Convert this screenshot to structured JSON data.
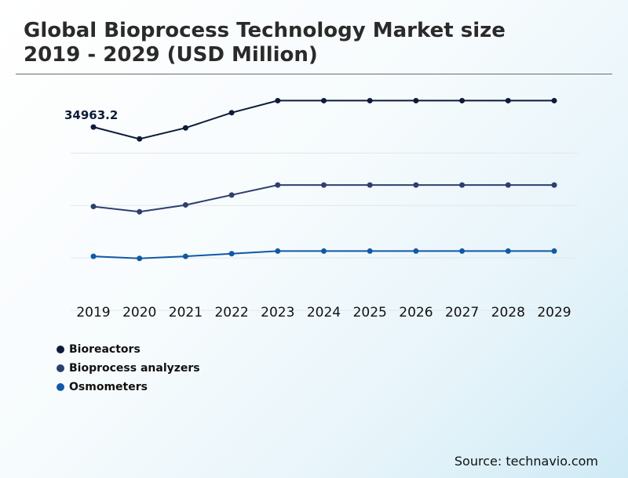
{
  "header": {
    "title_line1": "Global Bioprocess Technology Market size",
    "title_line2": "2019 - 2029 (USD Million)"
  },
  "chart_data": {
    "type": "line",
    "title": "Global Bioprocess Technology Market size 2019 - 2029 (USD Million)",
    "x": [
      "2019",
      "2020",
      "2021",
      "2022",
      "2023",
      "2024",
      "2025",
      "2026",
      "2027",
      "2028",
      "2029"
    ],
    "xlabel": "",
    "ylabel": "",
    "ylim": [
      0,
      45000
    ],
    "grid": "horizontal",
    "series": [
      {
        "name": "Bioreactors",
        "color": "#0d1b3a",
        "values": [
          34963.2,
          32700,
          34800,
          37700,
          40000,
          40000,
          40000,
          40000,
          40000,
          40000,
          40000
        ]
      },
      {
        "name": "Bioprocess analyzers",
        "color": "#2e3f6e",
        "values": [
          19800,
          18800,
          20100,
          22000,
          23900,
          23900,
          23900,
          23900,
          23900,
          23900,
          23900
        ]
      },
      {
        "name": "Osmometers",
        "color": "#1158a7",
        "values": [
          10300,
          9900,
          10300,
          10800,
          11300,
          11300,
          11300,
          11300,
          11300,
          11300,
          11300
        ]
      }
    ],
    "data_labels": [
      {
        "series": "Bioreactors",
        "x": "2019",
        "text": "34963.2"
      }
    ]
  },
  "legend": {
    "items": [
      {
        "label": "Bioreactors",
        "color": "#0d1b3a"
      },
      {
        "label": "Bioprocess analyzers",
        "color": "#2e3f6e"
      },
      {
        "label": "Osmometers",
        "color": "#1158a7"
      }
    ]
  },
  "footer": {
    "source": "Source: technavio.com"
  }
}
